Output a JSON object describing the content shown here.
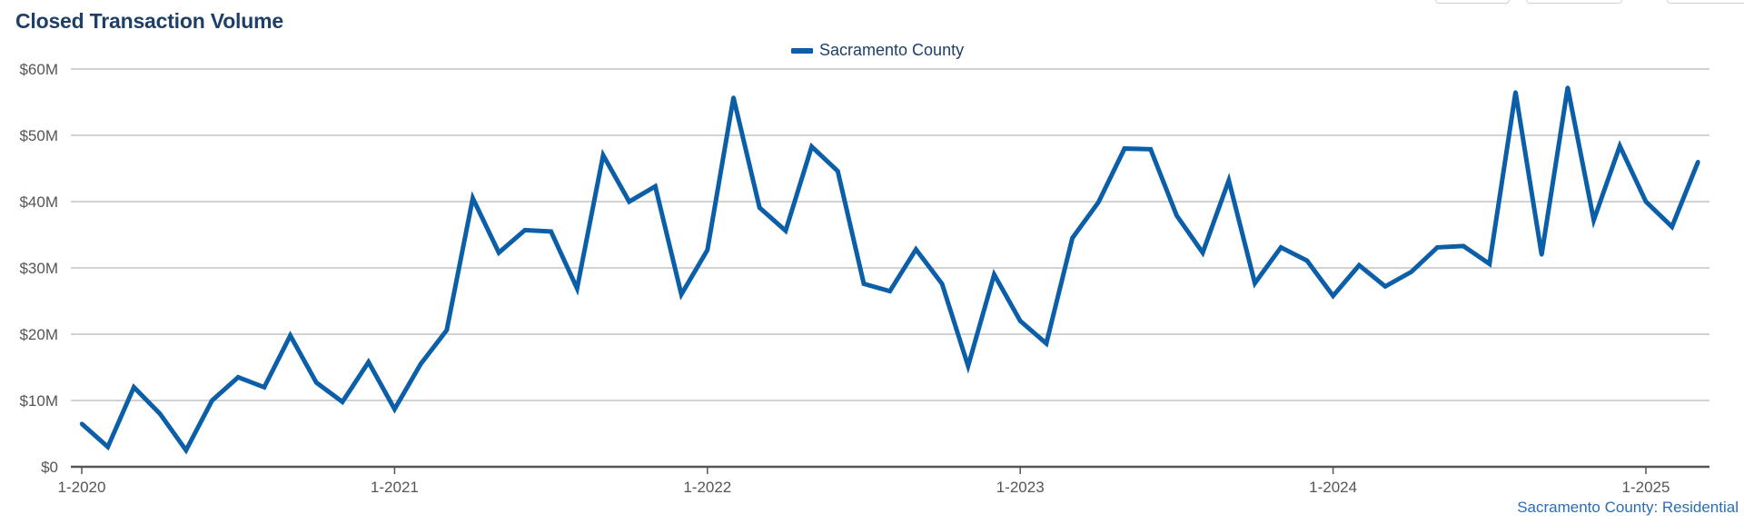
{
  "header": {
    "title": "Closed Transaction Volume"
  },
  "legend": {
    "label": "Sacramento County"
  },
  "footer": {
    "source": "Sacramento County: Residential"
  },
  "colors": {
    "series": "#0b5ea8",
    "title": "#1f3f66",
    "grid": "#b8b8b8",
    "axis": "#555555",
    "source": "#2a6db5"
  },
  "chart_data": {
    "type": "line",
    "title": "Closed Transaction Volume",
    "xlabel": "",
    "ylabel": "",
    "ylim": [
      0,
      60
    ],
    "y_unit": "millions of dollars",
    "y_ticks": [
      0,
      10,
      20,
      30,
      40,
      50,
      60
    ],
    "y_tick_labels": [
      "$0",
      "$10M",
      "$20M",
      "$30M",
      "$40M",
      "$50M",
      "$60M"
    ],
    "x_ticks": [
      "1-2020",
      "1-2021",
      "1-2022",
      "1-2023",
      "1-2024",
      "1-2025"
    ],
    "grid": true,
    "legend_position": "top-center",
    "series": [
      {
        "name": "Sacramento County",
        "x": [
          "1-2020",
          "2-2020",
          "3-2020",
          "4-2020",
          "5-2020",
          "6-2020",
          "7-2020",
          "8-2020",
          "9-2020",
          "10-2020",
          "11-2020",
          "12-2020",
          "1-2021",
          "2-2021",
          "3-2021",
          "4-2021",
          "5-2021",
          "6-2021",
          "7-2021",
          "8-2021",
          "9-2021",
          "10-2021",
          "11-2021",
          "12-2021",
          "1-2022",
          "2-2022",
          "3-2022",
          "4-2022",
          "5-2022",
          "6-2022",
          "7-2022",
          "8-2022",
          "9-2022",
          "10-2022",
          "11-2022",
          "12-2022",
          "1-2023",
          "2-2023",
          "3-2023",
          "4-2023",
          "5-2023",
          "6-2023",
          "7-2023",
          "8-2023",
          "9-2023",
          "10-2023",
          "11-2023",
          "12-2023",
          "1-2024",
          "2-2024",
          "3-2024",
          "4-2024",
          "5-2024",
          "6-2024",
          "7-2024",
          "8-2024",
          "9-2024",
          "10-2024",
          "11-2024",
          "12-2024",
          "1-2025",
          "2-2025",
          "3-2025"
        ],
        "values": [
          6.5,
          3.0,
          12.0,
          8.0,
          2.5,
          10.0,
          13.5,
          12.0,
          19.8,
          12.7,
          9.8,
          15.8,
          8.7,
          15.5,
          20.6,
          40.5,
          32.3,
          35.7,
          35.5,
          26.9,
          47.0,
          40.0,
          42.3,
          26.0,
          32.7,
          55.7,
          39.1,
          35.6,
          48.3,
          44.6,
          27.6,
          26.5,
          32.8,
          27.6,
          15.2,
          29.0,
          22.0,
          18.6,
          34.5,
          39.9,
          48.0,
          47.9,
          37.9,
          32.3,
          43.2,
          27.7,
          33.1,
          31.1,
          25.8,
          30.4,
          27.2,
          29.4,
          33.1,
          33.3,
          30.6,
          56.5,
          32.0,
          57.2,
          37.2,
          48.4,
          40.0,
          36.2,
          46.0
        ]
      }
    ]
  }
}
